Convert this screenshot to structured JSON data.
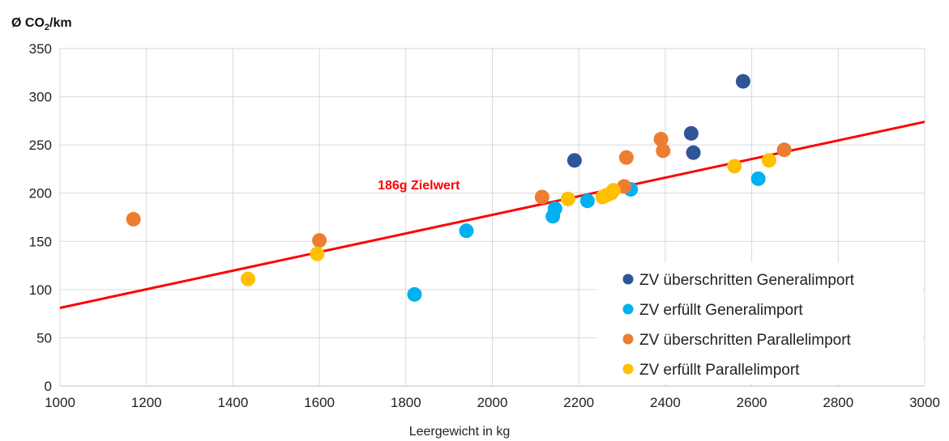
{
  "chart_data": {
    "type": "scatter",
    "ylabel_prefix": "Ø CO",
    "ylabel_sub": "2",
    "ylabel_suffix": "/km",
    "xlabel": "Leergewicht in kg",
    "xlim": [
      1000,
      3000
    ],
    "ylim": [
      0,
      350
    ],
    "xticks": [
      1000,
      1200,
      1400,
      1600,
      1800,
      2000,
      2200,
      2400,
      2600,
      2800,
      3000
    ],
    "yticks": [
      0,
      50,
      100,
      150,
      200,
      250,
      300,
      350
    ],
    "grid": true,
    "legend_position": "bottom-right",
    "series": [
      {
        "name": "ZV überschritten Generalimport",
        "color": "#2F5597",
        "points": [
          [
            2190,
            234
          ],
          [
            2460,
            262
          ],
          [
            2465,
            242
          ],
          [
            2580,
            316
          ]
        ]
      },
      {
        "name": "ZV erfüllt Generalimport",
        "color": "#00B0F0",
        "points": [
          [
            1820,
            95
          ],
          [
            1940,
            161
          ],
          [
            2140,
            176
          ],
          [
            2145,
            184
          ],
          [
            2220,
            192
          ],
          [
            2320,
            204
          ],
          [
            2615,
            215
          ]
        ]
      },
      {
        "name": "ZV überschritten Parallelimport",
        "color": "#ED7D31",
        "points": [
          [
            1170,
            173
          ],
          [
            1600,
            151
          ],
          [
            2115,
            196
          ],
          [
            2305,
            207
          ],
          [
            2310,
            237
          ],
          [
            2390,
            256
          ],
          [
            2395,
            244
          ],
          [
            2675,
            245
          ]
        ]
      },
      {
        "name": "ZV erfüllt Parallelimport",
        "color": "#FFC000",
        "points": [
          [
            1435,
            111
          ],
          [
            1595,
            137
          ],
          [
            2175,
            194
          ],
          [
            2255,
            196
          ],
          [
            2265,
            198
          ],
          [
            2275,
            200
          ],
          [
            2280,
            203
          ],
          [
            2560,
            228
          ],
          [
            2640,
            234
          ]
        ]
      }
    ],
    "target_line": {
      "label": "186g Zielwert",
      "color": "#FF0000",
      "points": [
        [
          1000,
          81
        ],
        [
          3000,
          274
        ]
      ]
    }
  }
}
